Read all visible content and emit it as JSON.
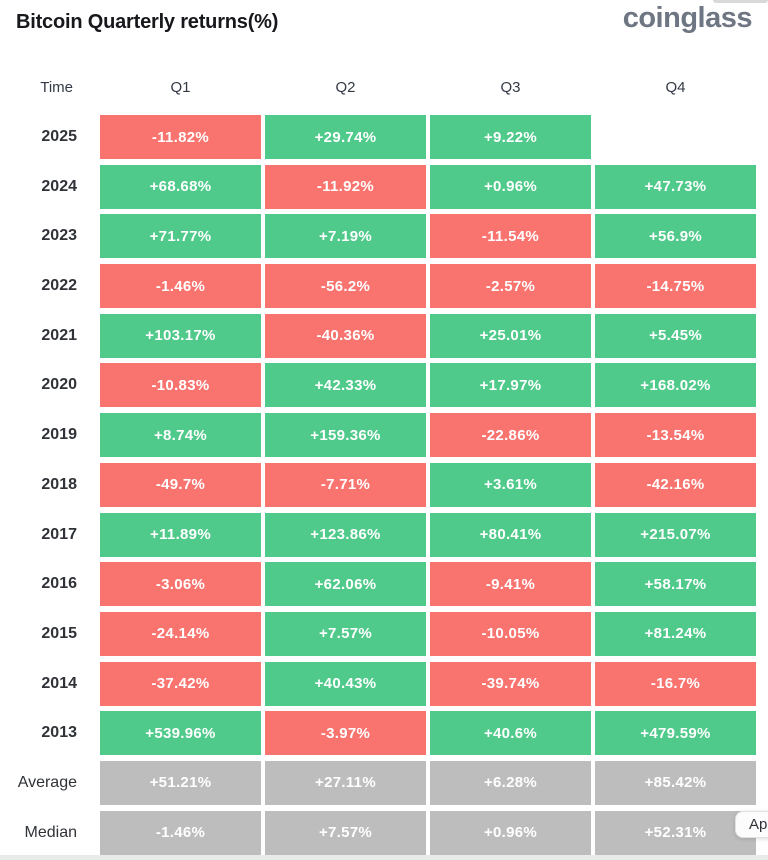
{
  "header": {
    "title": "Bitcoin Quarterly returns(%)",
    "logo": "coinglass"
  },
  "overlay_button": {
    "label": "Ap"
  },
  "colors": {
    "pos": "#4fca8b",
    "neg": "#f9736f",
    "neutral": "#bdbdbd"
  },
  "chart_data": {
    "type": "heatmap",
    "title": "Bitcoin Quarterly returns(%)",
    "columns": [
      "Time",
      "Q1",
      "Q2",
      "Q3",
      "Q4"
    ],
    "legend": {
      "pos": "positive return (green)",
      "neg": "negative return (red)",
      "neutral": "summary statistic (gray)"
    },
    "rows": [
      {
        "label": "2025",
        "kind": "year",
        "cells": [
          {
            "v": "-11.82%",
            "tone": "neg"
          },
          {
            "v": "+29.74%",
            "tone": "pos"
          },
          {
            "v": "+9.22%",
            "tone": "pos"
          },
          null
        ]
      },
      {
        "label": "2024",
        "kind": "year",
        "cells": [
          {
            "v": "+68.68%",
            "tone": "pos"
          },
          {
            "v": "-11.92%",
            "tone": "neg"
          },
          {
            "v": "+0.96%",
            "tone": "pos"
          },
          {
            "v": "+47.73%",
            "tone": "pos"
          }
        ]
      },
      {
        "label": "2023",
        "kind": "year",
        "cells": [
          {
            "v": "+71.77%",
            "tone": "pos"
          },
          {
            "v": "+7.19%",
            "tone": "pos"
          },
          {
            "v": "-11.54%",
            "tone": "neg"
          },
          {
            "v": "+56.9%",
            "tone": "pos"
          }
        ]
      },
      {
        "label": "2022",
        "kind": "year",
        "cells": [
          {
            "v": "-1.46%",
            "tone": "neg"
          },
          {
            "v": "-56.2%",
            "tone": "neg"
          },
          {
            "v": "-2.57%",
            "tone": "neg"
          },
          {
            "v": "-14.75%",
            "tone": "neg"
          }
        ]
      },
      {
        "label": "2021",
        "kind": "year",
        "cells": [
          {
            "v": "+103.17%",
            "tone": "pos"
          },
          {
            "v": "-40.36%",
            "tone": "neg"
          },
          {
            "v": "+25.01%",
            "tone": "pos"
          },
          {
            "v": "+5.45%",
            "tone": "pos"
          }
        ]
      },
      {
        "label": "2020",
        "kind": "year",
        "cells": [
          {
            "v": "-10.83%",
            "tone": "neg"
          },
          {
            "v": "+42.33%",
            "tone": "pos"
          },
          {
            "v": "+17.97%",
            "tone": "pos"
          },
          {
            "v": "+168.02%",
            "tone": "pos"
          }
        ]
      },
      {
        "label": "2019",
        "kind": "year",
        "cells": [
          {
            "v": "+8.74%",
            "tone": "pos"
          },
          {
            "v": "+159.36%",
            "tone": "pos"
          },
          {
            "v": "-22.86%",
            "tone": "neg"
          },
          {
            "v": "-13.54%",
            "tone": "neg"
          }
        ]
      },
      {
        "label": "2018",
        "kind": "year",
        "cells": [
          {
            "v": "-49.7%",
            "tone": "neg"
          },
          {
            "v": "-7.71%",
            "tone": "neg"
          },
          {
            "v": "+3.61%",
            "tone": "pos"
          },
          {
            "v": "-42.16%",
            "tone": "neg"
          }
        ]
      },
      {
        "label": "2017",
        "kind": "year",
        "cells": [
          {
            "v": "+11.89%",
            "tone": "pos"
          },
          {
            "v": "+123.86%",
            "tone": "pos"
          },
          {
            "v": "+80.41%",
            "tone": "pos"
          },
          {
            "v": "+215.07%",
            "tone": "pos"
          }
        ]
      },
      {
        "label": "2016",
        "kind": "year",
        "cells": [
          {
            "v": "-3.06%",
            "tone": "neg"
          },
          {
            "v": "+62.06%",
            "tone": "pos"
          },
          {
            "v": "-9.41%",
            "tone": "neg"
          },
          {
            "v": "+58.17%",
            "tone": "pos"
          }
        ]
      },
      {
        "label": "2015",
        "kind": "year",
        "cells": [
          {
            "v": "-24.14%",
            "tone": "neg"
          },
          {
            "v": "+7.57%",
            "tone": "pos"
          },
          {
            "v": "-10.05%",
            "tone": "neg"
          },
          {
            "v": "+81.24%",
            "tone": "pos"
          }
        ]
      },
      {
        "label": "2014",
        "kind": "year",
        "cells": [
          {
            "v": "-37.42%",
            "tone": "neg"
          },
          {
            "v": "+40.43%",
            "tone": "pos"
          },
          {
            "v": "-39.74%",
            "tone": "neg"
          },
          {
            "v": "-16.7%",
            "tone": "neg"
          }
        ]
      },
      {
        "label": "2013",
        "kind": "year",
        "cells": [
          {
            "v": "+539.96%",
            "tone": "pos"
          },
          {
            "v": "-3.97%",
            "tone": "neg"
          },
          {
            "v": "+40.6%",
            "tone": "pos"
          },
          {
            "v": "+479.59%",
            "tone": "pos"
          }
        ]
      },
      {
        "label": "Average",
        "kind": "summary",
        "cells": [
          {
            "v": "+51.21%",
            "tone": "neutral"
          },
          {
            "v": "+27.11%",
            "tone": "neutral"
          },
          {
            "v": "+6.28%",
            "tone": "neutral"
          },
          {
            "v": "+85.42%",
            "tone": "neutral"
          }
        ]
      },
      {
        "label": "Median",
        "kind": "summary",
        "cells": [
          {
            "v": "-1.46%",
            "tone": "neutral"
          },
          {
            "v": "+7.57%",
            "tone": "neutral"
          },
          {
            "v": "+0.96%",
            "tone": "neutral"
          },
          {
            "v": "+52.31%",
            "tone": "neutral"
          }
        ]
      }
    ]
  }
}
